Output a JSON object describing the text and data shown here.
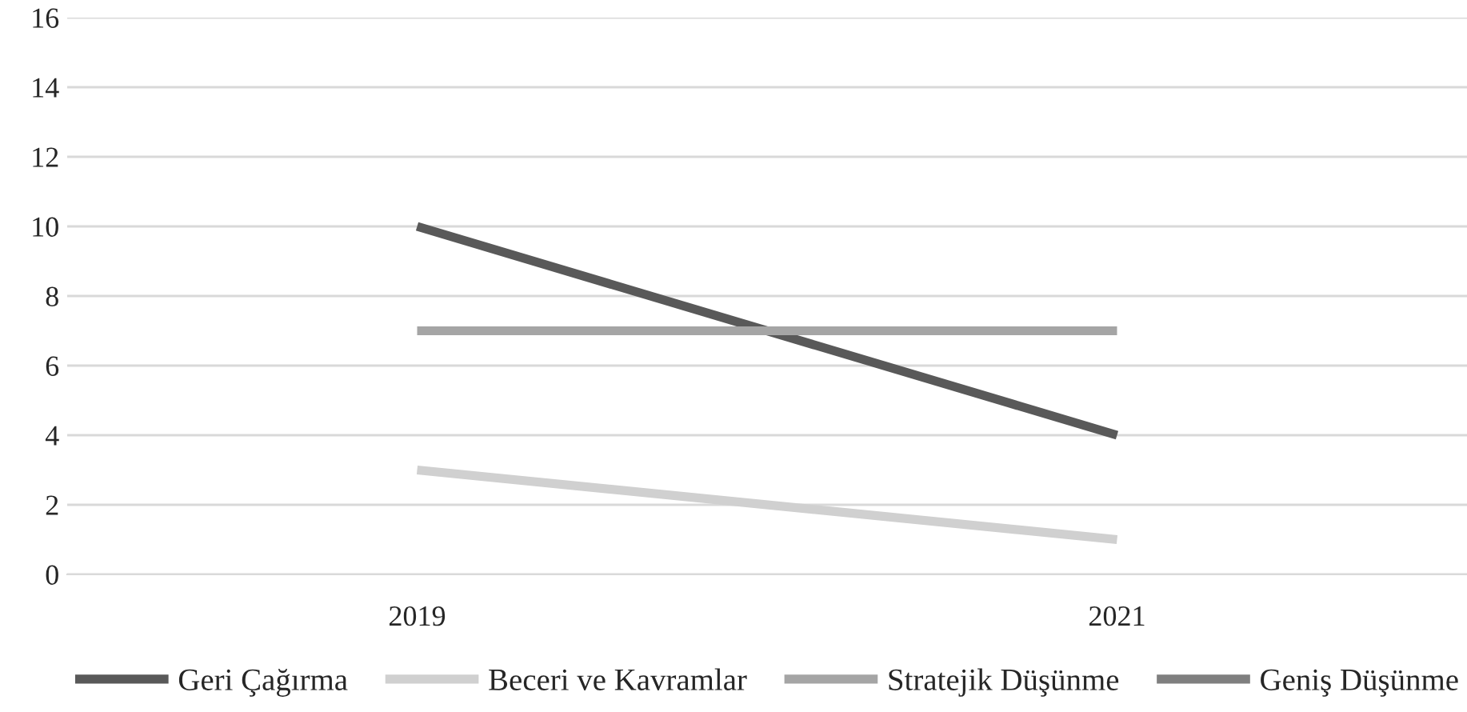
{
  "chart_data": {
    "type": "line",
    "categories": [
      "2019",
      "2021"
    ],
    "series": [
      {
        "name": "Geri Çağırma",
        "color": "#595959",
        "values": [
          10,
          4
        ]
      },
      {
        "name": "Beceri ve Kavramlar",
        "color": "#d0d0d0",
        "values": [
          3,
          1
        ]
      },
      {
        "name": "Stratejik Düşünme",
        "color": "#a5a5a5",
        "values": [
          7,
          7
        ]
      },
      {
        "name": "Geniş Düşünme",
        "color": "#7f7f7f",
        "values": [
          null,
          null
        ]
      }
    ],
    "ylim": [
      0,
      16
    ],
    "yticks": [
      0,
      2,
      4,
      6,
      8,
      10,
      12,
      14,
      16
    ],
    "grid": "y",
    "legend": "bottom",
    "marker": "none",
    "line_style": "solid"
  }
}
